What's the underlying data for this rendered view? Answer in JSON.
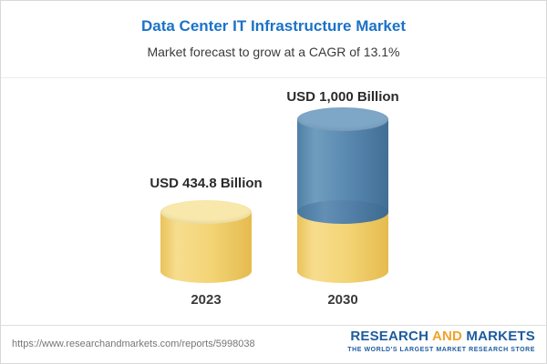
{
  "page": {
    "background": "#FFFFFF",
    "border_color": "#D8D8D8"
  },
  "header": {
    "title": "Data Center IT Infrastructure Market",
    "subtitle": "Market forecast to grow at a CAGR of 13.1%",
    "title_color": "#1B72C8"
  },
  "chart_data": {
    "type": "bar",
    "bar_style": "3d-cylinder",
    "title": "Data Center IT Infrastructure Market",
    "subtitle": "Market forecast to grow at a CAGR of 13.1%",
    "categories": [
      "2023",
      "2030"
    ],
    "values": [
      434.8,
      1000
    ],
    "value_labels": [
      "USD 434.8 Billion",
      "USD 1,000 Billion"
    ],
    "unit": "USD Billion",
    "cagr_percent": 13.1,
    "ylim": [
      0,
      1100
    ],
    "grid": false,
    "legend": "none",
    "stacked_bar_2030": {
      "base_2023_level": 434.8,
      "growth": 565.2
    },
    "colors": {
      "base_segment": "#F2D06B",
      "growth_segment": "#4E81A9"
    }
  },
  "footer": {
    "url": "https://www.researchandmarkets.com/reports/5998038",
    "logo": {
      "word1": "RESEARCH",
      "word2": "AND",
      "word3": "MARKETS",
      "tagline": "THE WORLD'S LARGEST MARKET RESEARCH STORE",
      "blue": "#1D5C9E",
      "orange": "#F0A32A"
    }
  }
}
